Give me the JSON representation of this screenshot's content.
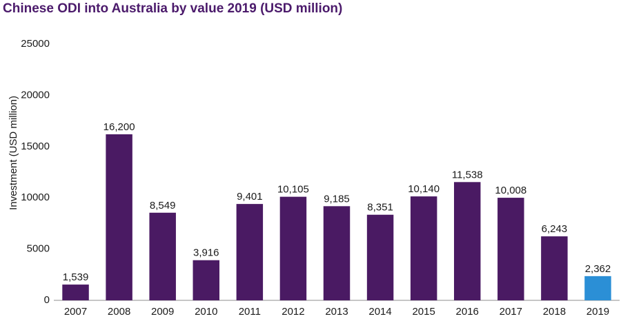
{
  "chart_data": {
    "type": "bar",
    "title": "Chinese ODI into Australia by value 2019 (USD million)",
    "ylabel": "Investment (USD million)",
    "xlabel": "",
    "categories": [
      "2007",
      "2008",
      "2009",
      "2010",
      "2011",
      "2012",
      "2013",
      "2014",
      "2015",
      "2016",
      "2017",
      "2018",
      "2019"
    ],
    "values": [
      1539,
      16200,
      8549,
      3916,
      9401,
      10105,
      9185,
      8351,
      10140,
      11538,
      10008,
      6243,
      2362
    ],
    "data_labels": [
      "1,539",
      "16,200",
      "8,549",
      "3,916",
      "9,401",
      "10,105",
      "9,185",
      "8,351",
      "10,140",
      "11,538",
      "10,008",
      "6,243",
      "2,362"
    ],
    "ylim": [
      0,
      25000
    ],
    "yticks": [
      0,
      5000,
      10000,
      15000,
      20000,
      25000
    ],
    "ytick_labels": [
      "0",
      "5000",
      "10000",
      "15000",
      "20000",
      "25000"
    ],
    "grid": false,
    "colors": {
      "bar": "#4a1a63",
      "highlight": "#2b8fd6",
      "title": "#4b1a6b",
      "axis": "#8c8c8c"
    },
    "highlight_category": "2019"
  }
}
